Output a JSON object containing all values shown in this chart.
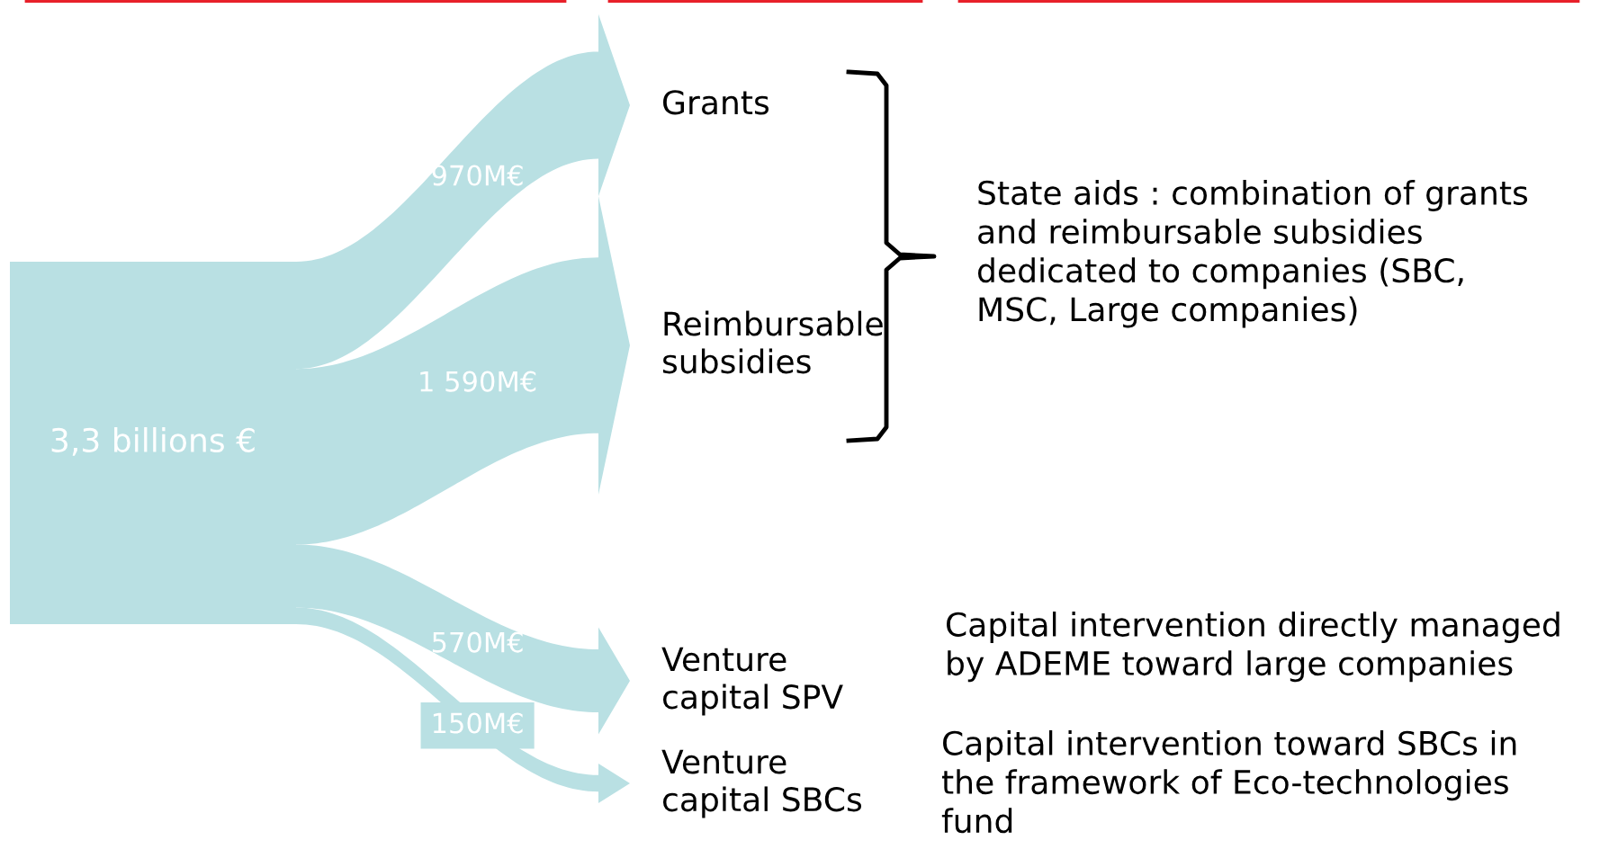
{
  "chart_data": {
    "type": "other",
    "categories": [
      "Grants",
      "Reimbursable\nsubsidies",
      "Venture\ncapital SPV",
      "Venture\ncapital SBCs"
    ],
    "values": [
      970,
      1590,
      570,
      150
    ],
    "value_labels": [
      "970M€",
      "1 590M€",
      "570M€",
      "150M€"
    ],
    "color": "#b9e0e3",
    "annotations": [
      "3,3 billions €",
      "State aids : combination of grants\nand reimbursable subsidies\ndedicated to companies (SBC,\nMSC, Large companies)",
      "Capital intervention directly managed\nby ADEME toward large companies",
      "Capital intervention toward SBCs in\nthe framework of Eco-technologies\nfund"
    ]
  }
}
